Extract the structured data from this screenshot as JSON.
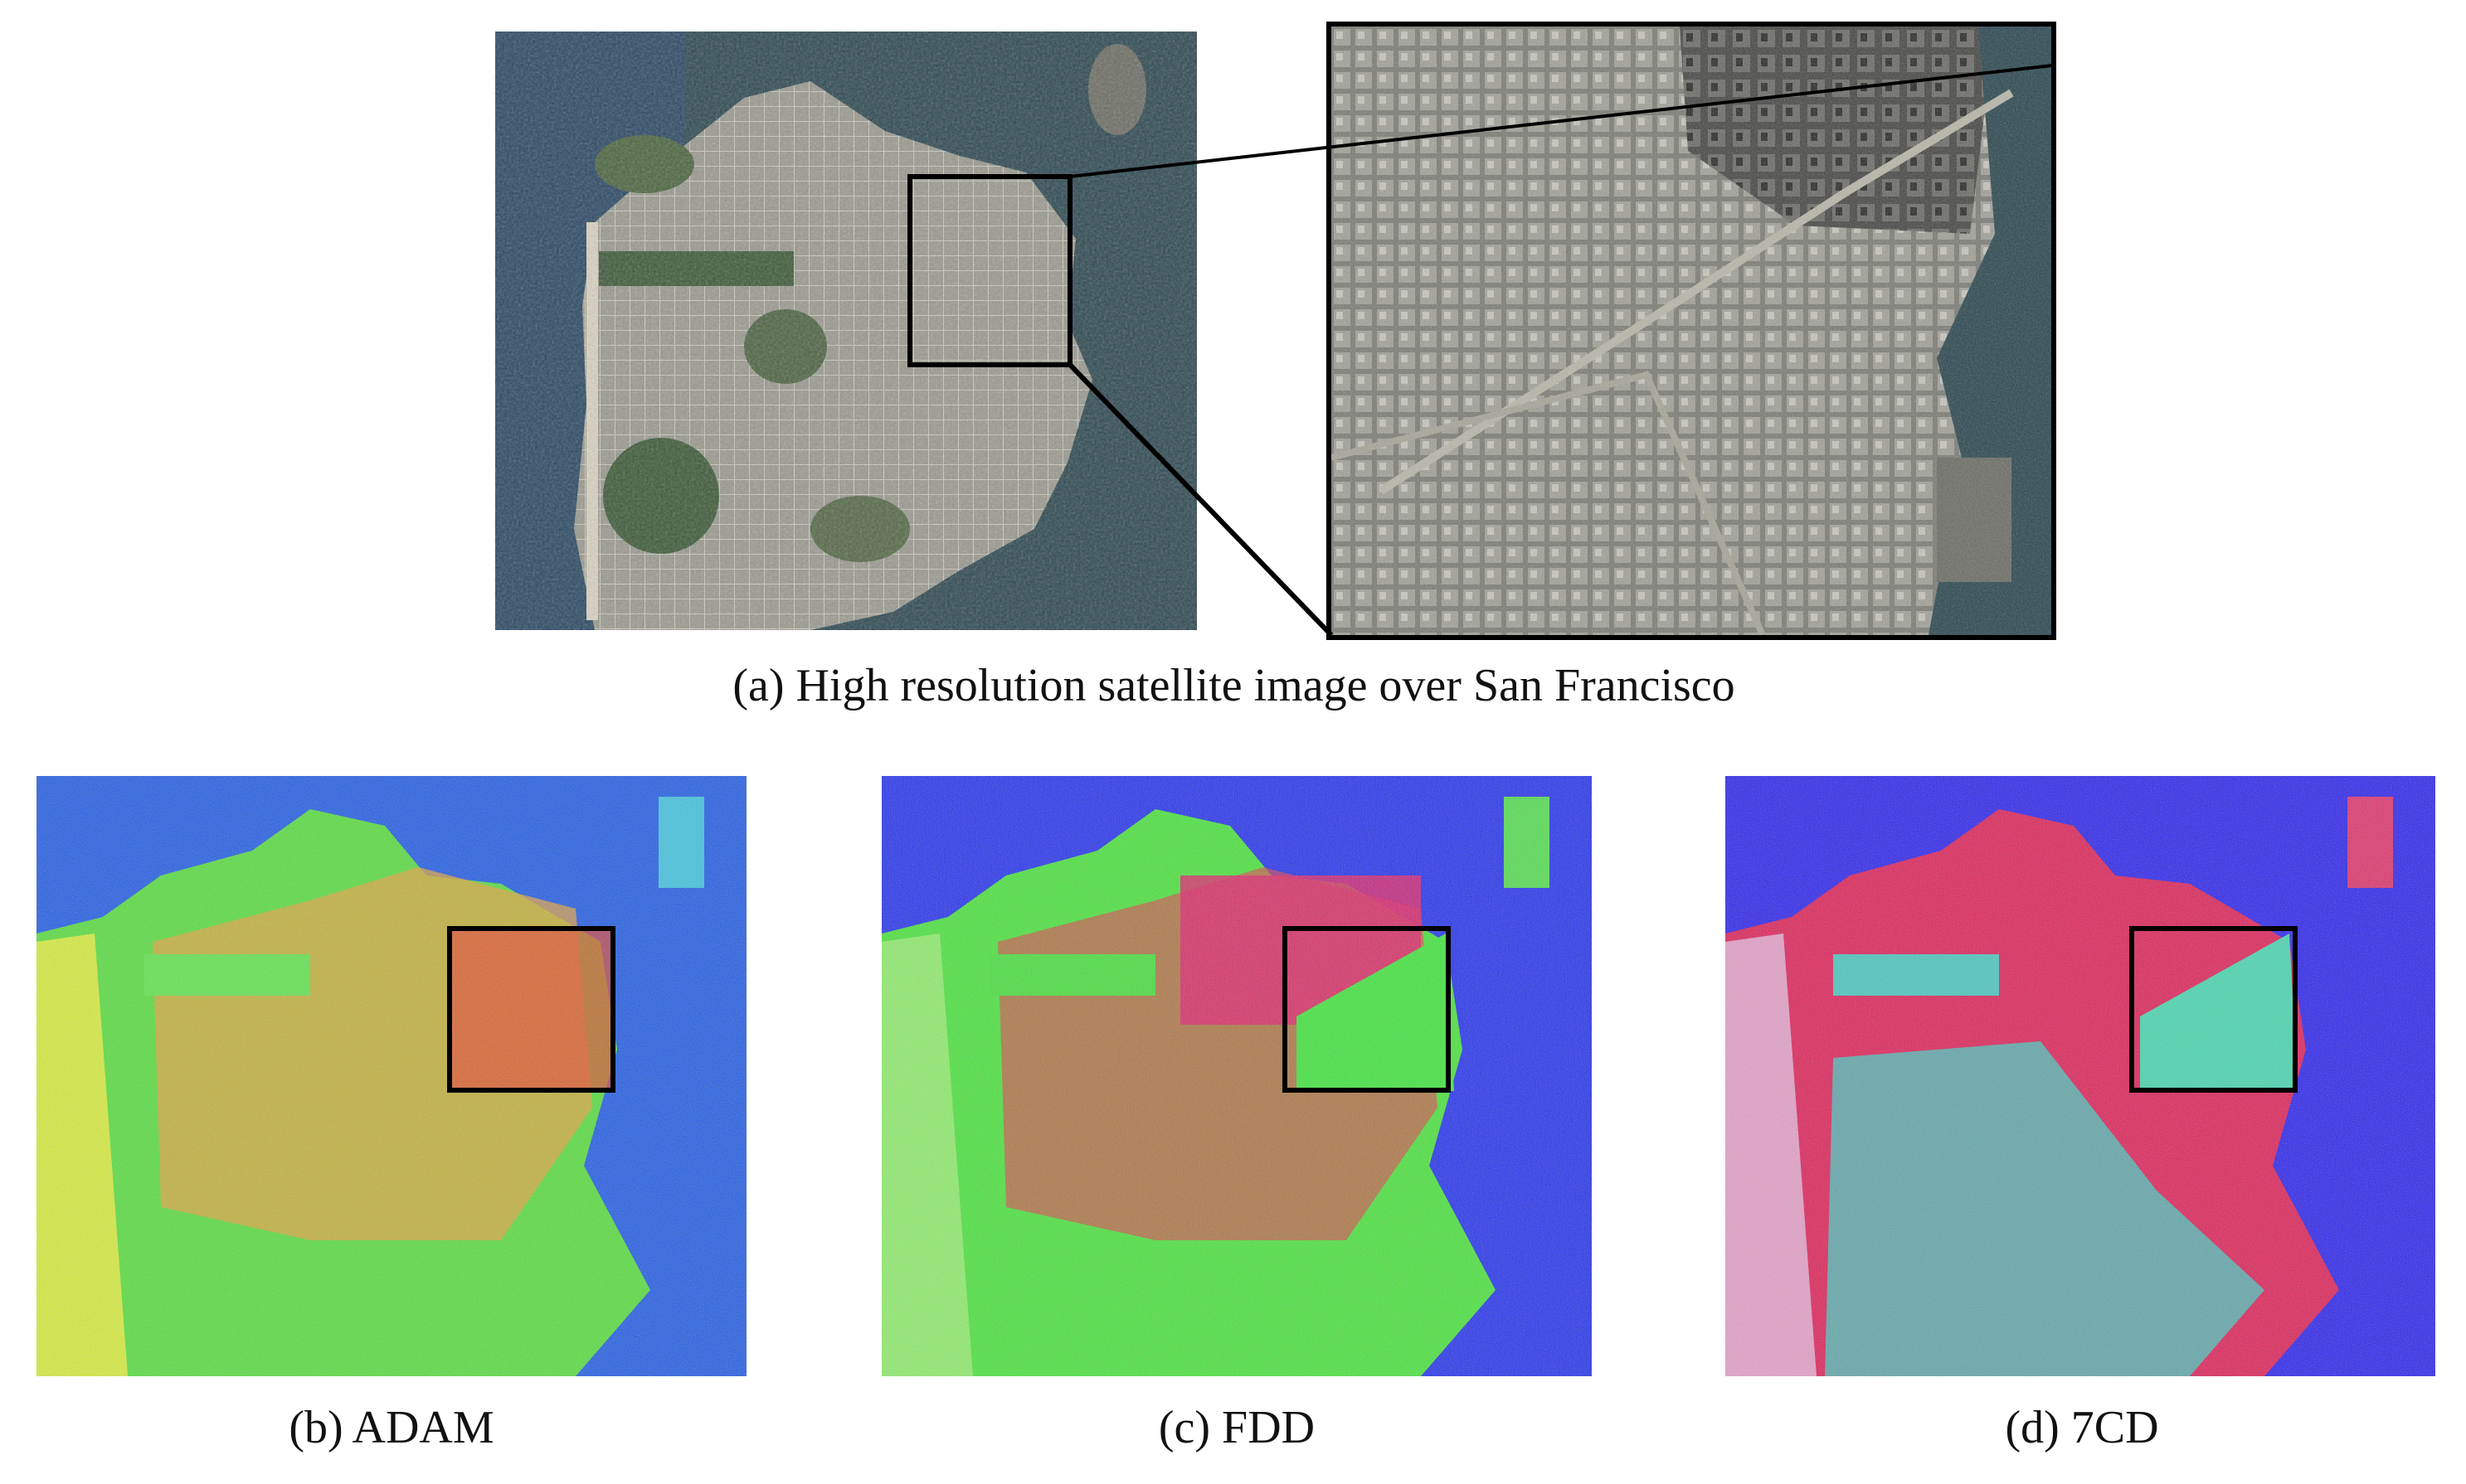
{
  "figure": {
    "panel_a": {
      "caption": "(a) High resolution satellite image over San Francisco",
      "overview_image": "satellite-overview-san-francisco",
      "zoom_image": "satellite-zoom-downtown"
    },
    "panel_b": {
      "caption": "(b) ADAM",
      "image": "decomposition-map-adam"
    },
    "panel_c": {
      "caption": "(c) FDD",
      "image": "decomposition-map-fdd"
    },
    "panel_d": {
      "caption": "(d) 7CD",
      "image": "decomposition-map-7cd"
    }
  },
  "colors": {
    "water_satellite": "#2f4a52",
    "land_satellite": "#8f8f85",
    "park_satellite": "#3f5b3a",
    "map_water": "#1f3ff0",
    "map_red": "#e8262a",
    "map_green": "#3fe63a",
    "map_yellow": "#e6f03a",
    "map_cyan": "#40c9c0",
    "map_magenta": "#e0206a",
    "roi_box": "#000000"
  }
}
